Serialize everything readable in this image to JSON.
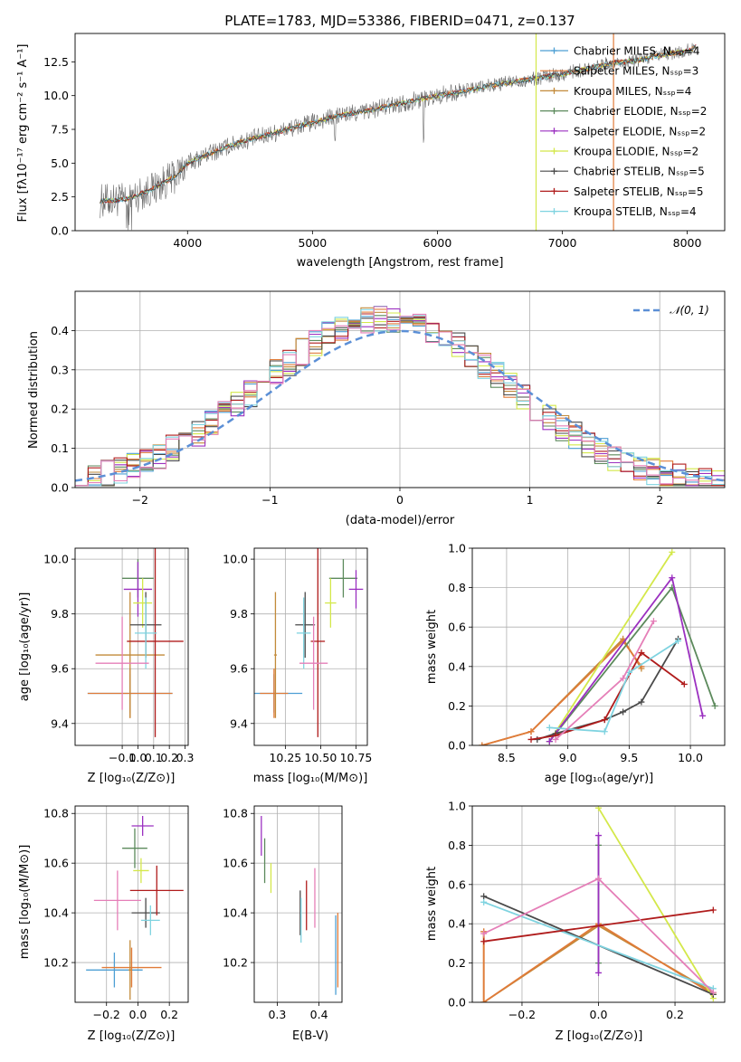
{
  "colors": {
    "chabrier_miles": "#4d9fd4",
    "salpeter_miles": "#e07b39",
    "kroupa_miles": "#c28a3a",
    "chabrier_elodie": "#5c8a5c",
    "salpeter_elodie": "#9b30c0",
    "kroupa_elodie": "#d4e84a",
    "chabrier_stelib": "#4a4a4a",
    "salpeter_stelib": "#b01c1c",
    "kroupa_stelib": "#7fd3e0",
    "extra_pink": "#e57fb8",
    "gaussian": "#5b8fd6",
    "spectrum_gray": "#6e6e6e"
  },
  "chart_data": [
    {
      "id": "spectrum",
      "type": "line",
      "title": "PLATE=1783, MJD=53386, FIBERID=0471, z=0.137",
      "xlabel": "wavelength [Angstrom, rest frame]",
      "ylabel": "Flux [fλ10⁻¹⁷ erg cm⁻² s⁻¹ A⁻¹]",
      "xlim": [
        3100,
        8300
      ],
      "ylim": [
        0,
        14.6
      ],
      "xticks": [
        "4000",
        "5000",
        "6000",
        "7000",
        "8000"
      ],
      "yticks": [
        "0.0",
        "2.5",
        "5.0",
        "7.5",
        "10.0",
        "12.5"
      ],
      "legend_position": "top-right",
      "grid": false,
      "legend": [
        {
          "name": "Chabrier MILES, Nₛₛₚ=4",
          "color_key": "chabrier_miles",
          "marker": "+"
        },
        {
          "name": "Salpeter MILES, Nₛₛₚ=3",
          "color_key": "salpeter_miles",
          "marker": ""
        },
        {
          "name": "Kroupa MILES, Nₛₛₚ=4",
          "color_key": "kroupa_miles",
          "marker": "+"
        },
        {
          "name": "Chabrier ELODIE, Nₛₛₚ=2",
          "color_key": "chabrier_elodie",
          "marker": "+"
        },
        {
          "name": "Salpeter ELODIE, Nₛₛₚ=2",
          "color_key": "salpeter_elodie",
          "marker": "+"
        },
        {
          "name": "Kroupa ELODIE, Nₛₛₚ=2",
          "color_key": "kroupa_elodie",
          "marker": "+"
        },
        {
          "name": "Chabrier STELIB, Nₛₛₚ=5",
          "color_key": "chabrier_stelib",
          "marker": "+"
        },
        {
          "name": "Salpeter STELIB, Nₛₛₚ=5",
          "color_key": "salpeter_stelib",
          "marker": "+"
        },
        {
          "name": "Kroupa STELIB, Nₛₛₚ=4",
          "color_key": "kroupa_stelib",
          "marker": "+"
        }
      ],
      "spectrum_anchors": {
        "x": [
          3300,
          3500,
          3700,
          3900,
          4000,
          4200,
          4400,
          4600,
          4800,
          5000,
          5200,
          5400,
          5600,
          5800,
          6000,
          6200,
          6400,
          6600,
          6800,
          7000,
          7200,
          7400,
          7600,
          7800,
          8000,
          8070
        ],
        "y": [
          2.2,
          2.3,
          3.0,
          4.0,
          5.0,
          5.8,
          6.5,
          7.0,
          7.5,
          8.0,
          8.5,
          8.8,
          9.2,
          9.6,
          10.0,
          10.3,
          10.7,
          11.0,
          11.3,
          11.6,
          12.0,
          12.4,
          12.6,
          13.0,
          13.3,
          13.6
        ]
      },
      "vertical_spikes_x": [
        6790,
        7410
      ]
    },
    {
      "id": "residuals",
      "type": "histogram",
      "xlabel": "(data-model)/error",
      "ylabel": "Normed distribution",
      "xlim": [
        -2.5,
        2.5
      ],
      "ylim": [
        0,
        0.5
      ],
      "xticks": [
        "−2",
        "−1",
        "0",
        "1",
        "2"
      ],
      "yticks": [
        "0.0",
        "0.1",
        "0.2",
        "0.3",
        "0.4"
      ],
      "grid": true,
      "legend_position": "top-right",
      "gaussian_label": "𝒩(0, 1)",
      "bin_width": 0.1
    },
    {
      "id": "age_vs_Z",
      "type": "errorbar",
      "xlabel": "Z [log₁₀(Z/Z⊙)]",
      "ylabel": "age  [log₁₀(age/yr)]",
      "xlim": [
        -0.4,
        0.32
      ],
      "ylim": [
        9.32,
        10.04
      ],
      "xticks": [
        "−0.1",
        "0.0",
        "0.1",
        "0.2",
        "0.3"
      ],
      "yticks": [
        "9.4",
        "9.6",
        "9.8",
        "10.0"
      ],
      "grid": true,
      "points": [
        {
          "color_key": "chabrier_miles",
          "x": -0.05,
          "xerr": 0.27,
          "y": 9.51,
          "yerr": 0.07
        },
        {
          "color_key": "salpeter_miles",
          "x": -0.05,
          "xerr": 0.27,
          "y": 9.51,
          "yerr": 0.09
        },
        {
          "color_key": "kroupa_miles",
          "x": -0.05,
          "xerr": 0.22,
          "y": 9.65,
          "yerr": 0.23
        },
        {
          "color_key": "chabrier_elodie",
          "x": 0.0,
          "xerr": 0.1,
          "y": 9.93,
          "yerr": 0.07
        },
        {
          "color_key": "salpeter_elodie",
          "x": 0.0,
          "xerr": 0.09,
          "y": 9.89,
          "yerr": 0.1
        },
        {
          "color_key": "kroupa_elodie",
          "x": 0.03,
          "xerr": 0.06,
          "y": 9.84,
          "yerr": 0.09
        },
        {
          "color_key": "chabrier_stelib",
          "x": 0.05,
          "xerr": 0.1,
          "y": 9.76,
          "yerr": 0.12
        },
        {
          "color_key": "salpeter_stelib",
          "x": 0.11,
          "xerr": 0.18,
          "y": 9.7,
          "yerr": 0.35
        },
        {
          "color_key": "kroupa_stelib",
          "x": 0.05,
          "xerr": 0.07,
          "y": 9.73,
          "yerr": 0.13
        },
        {
          "color_key": "extra_pink",
          "x": -0.1,
          "xerr": 0.17,
          "y": 9.62,
          "yerr": 0.17
        }
      ]
    },
    {
      "id": "age_vs_mass",
      "type": "errorbar",
      "xlabel": "mass [log₁₀(M/M⊙)]",
      "ylabel": "",
      "xlim": [
        10.03,
        10.83
      ],
      "ylim": [
        9.32,
        10.04
      ],
      "xticks": [
        "10.25",
        "10.50",
        "10.75"
      ],
      "yticks": [
        "9.4",
        "9.6",
        "9.8",
        "10.0"
      ],
      "grid": true,
      "points": [
        {
          "color_key": "chabrier_miles",
          "x": 10.17,
          "xerr": 0.2,
          "y": 9.51,
          "yerr": 0.07
        },
        {
          "color_key": "salpeter_miles",
          "x": 10.17,
          "xerr": 0.1,
          "y": 9.51,
          "yerr": 0.09
        },
        {
          "color_key": "kroupa_miles",
          "x": 10.18,
          "xerr": 0.01,
          "y": 9.65,
          "yerr": 0.23
        },
        {
          "color_key": "chabrier_elodie",
          "x": 10.66,
          "xerr": 0.1,
          "y": 9.93,
          "yerr": 0.07
        },
        {
          "color_key": "salpeter_elodie",
          "x": 10.75,
          "xerr": 0.05,
          "y": 9.89,
          "yerr": 0.07
        },
        {
          "color_key": "kroupa_elodie",
          "x": 10.57,
          "xerr": 0.04,
          "y": 9.84,
          "yerr": 0.09
        },
        {
          "color_key": "chabrier_stelib",
          "x": 10.39,
          "xerr": 0.07,
          "y": 9.76,
          "yerr": 0.12
        },
        {
          "color_key": "salpeter_stelib",
          "x": 10.48,
          "xerr": 0.05,
          "y": 9.7,
          "yerr": 0.35
        },
        {
          "color_key": "kroupa_stelib",
          "x": 10.38,
          "xerr": 0.05,
          "y": 9.73,
          "yerr": 0.13
        },
        {
          "color_key": "extra_pink",
          "x": 10.45,
          "xerr": 0.1,
          "y": 9.62,
          "yerr": 0.17
        }
      ]
    },
    {
      "id": "massweight_vs_age",
      "type": "line",
      "xlabel": "age  [log₁₀(age/yr)]",
      "ylabel": "mass weight",
      "xlim": [
        8.22,
        10.28
      ],
      "ylim": [
        0,
        1.0
      ],
      "xticks": [
        "8.5",
        "9.0",
        "9.5",
        "10.0"
      ],
      "yticks": [
        "0.0",
        "0.2",
        "0.4",
        "0.6",
        "0.8",
        "1.0"
      ],
      "grid": true,
      "series": [
        {
          "color_key": "kroupa_miles",
          "x": [
            8.3,
            8.7,
            9.45,
            9.6
          ],
          "y": [
            0.0,
            0.07,
            0.54,
            0.39
          ]
        },
        {
          "color_key": "salpeter_miles",
          "x": [
            8.3,
            8.7,
            9.45,
            9.6
          ],
          "y": [
            0.0,
            0.07,
            0.53,
            0.4
          ]
        },
        {
          "color_key": "kroupa_elodie",
          "x": [
            8.85,
            9.85
          ],
          "y": [
            0.02,
            0.98
          ]
        },
        {
          "color_key": "chabrier_elodie",
          "x": [
            8.85,
            9.85,
            10.2
          ],
          "y": [
            0.02,
            0.8,
            0.2
          ]
        },
        {
          "color_key": "salpeter_elodie",
          "x": [
            8.85,
            9.85,
            10.1
          ],
          "y": [
            0.02,
            0.85,
            0.15
          ]
        },
        {
          "color_key": "chabrier_stelib",
          "x": [
            8.75,
            8.9,
            9.3,
            9.45,
            9.6,
            9.9
          ],
          "y": [
            0.03,
            0.06,
            0.13,
            0.17,
            0.22,
            0.54
          ]
        },
        {
          "color_key": "salpeter_stelib",
          "x": [
            8.7,
            8.9,
            9.3,
            9.6,
            9.95
          ],
          "y": [
            0.03,
            0.05,
            0.13,
            0.47,
            0.31
          ]
        },
        {
          "color_key": "kroupa_stelib",
          "x": [
            8.85,
            9.3,
            9.5,
            9.9
          ],
          "y": [
            0.09,
            0.07,
            0.37,
            0.53
          ]
        },
        {
          "color_key": "extra_pink",
          "x": [
            8.9,
            9.45,
            9.7
          ],
          "y": [
            0.03,
            0.34,
            0.63
          ]
        }
      ]
    },
    {
      "id": "mass_vs_Z",
      "type": "errorbar",
      "xlabel": "Z [log₁₀(Z/Z⊙)]",
      "ylabel": "mass [log₁₀(M/M⊙)]",
      "xlim": [
        -0.4,
        0.32
      ],
      "ylim": [
        10.04,
        10.83
      ],
      "xticks": [
        "−0.2",
        "0.0",
        "0.2"
      ],
      "yticks": [
        "10.2",
        "10.4",
        "10.6",
        "10.8"
      ],
      "grid": true,
      "points": [
        {
          "color_key": "chabrier_miles",
          "x": -0.15,
          "xerr": 0.18,
          "y": 10.17,
          "yerr": 0.07
        },
        {
          "color_key": "salpeter_miles",
          "x": -0.04,
          "xerr": 0.19,
          "y": 10.18,
          "yerr": 0.08
        },
        {
          "color_key": "kroupa_miles",
          "x": -0.05,
          "xerr": 0.01,
          "y": 10.17,
          "yerr": 0.12
        },
        {
          "color_key": "chabrier_elodie",
          "x": -0.02,
          "xerr": 0.08,
          "y": 10.66,
          "yerr": 0.08
        },
        {
          "color_key": "salpeter_elodie",
          "x": 0.03,
          "xerr": 0.07,
          "y": 10.75,
          "yerr": 0.04
        },
        {
          "color_key": "kroupa_elodie",
          "x": 0.02,
          "xerr": 0.05,
          "y": 10.57,
          "yerr": 0.05
        },
        {
          "color_key": "chabrier_stelib",
          "x": 0.05,
          "xerr": 0.09,
          "y": 10.4,
          "yerr": 0.06
        },
        {
          "color_key": "salpeter_stelib",
          "x": 0.12,
          "xerr": 0.17,
          "y": 10.49,
          "yerr": 0.1
        },
        {
          "color_key": "kroupa_stelib",
          "x": 0.08,
          "xerr": 0.06,
          "y": 10.37,
          "yerr": 0.06
        },
        {
          "color_key": "extra_pink",
          "x": -0.13,
          "xerr": 0.15,
          "y": 10.45,
          "yerr": 0.12
        }
      ]
    },
    {
      "id": "mass_vs_ebv",
      "type": "errorbar",
      "xlabel": "E(B-V)",
      "ylabel": "",
      "xlim": [
        0.245,
        0.455
      ],
      "ylim": [
        10.04,
        10.83
      ],
      "xticks": [
        "0.3",
        "0.4"
      ],
      "yticks": [
        "10.2",
        "10.4",
        "10.6",
        "10.8"
      ],
      "grid": true,
      "points": [
        {
          "color_key": "chabrier_miles",
          "x": 0.44,
          "xerr": 0,
          "y": 10.23,
          "yerr": 0.16
        },
        {
          "color_key": "salpeter_miles",
          "x": 0.445,
          "xerr": 0,
          "y": 10.25,
          "yerr": 0.15
        },
        {
          "color_key": "chabrier_elodie",
          "x": 0.27,
          "xerr": 0,
          "y": 10.61,
          "yerr": 0.09
        },
        {
          "color_key": "salpeter_elodie",
          "x": 0.262,
          "xerr": 0,
          "y": 10.71,
          "yerr": 0.08
        },
        {
          "color_key": "kroupa_elodie",
          "x": 0.285,
          "xerr": 0,
          "y": 10.54,
          "yerr": 0.06
        },
        {
          "color_key": "chabrier_stelib",
          "x": 0.355,
          "xerr": 0,
          "y": 10.4,
          "yerr": 0.09
        },
        {
          "color_key": "salpeter_stelib",
          "x": 0.37,
          "xerr": 0,
          "y": 10.43,
          "yerr": 0.1
        },
        {
          "color_key": "kroupa_stelib",
          "x": 0.357,
          "xerr": 0,
          "y": 10.37,
          "yerr": 0.09
        },
        {
          "color_key": "extra_pink",
          "x": 0.39,
          "xerr": 0,
          "y": 10.46,
          "yerr": 0.12
        }
      ]
    },
    {
      "id": "massweight_vs_Z",
      "type": "line",
      "xlabel": "Z [log₁₀(Z/Z⊙)]",
      "ylabel": "mass weight",
      "xlim": [
        -0.33,
        0.33
      ],
      "ylim": [
        0,
        1.0
      ],
      "xticks": [
        "−0.2",
        "0.0",
        "0.2"
      ],
      "yticks": [
        "0.0",
        "0.2",
        "0.4",
        "0.6",
        "0.8",
        "1.0"
      ],
      "grid": true,
      "series": [
        {
          "color_key": "kroupa_miles",
          "x": [
            -0.3,
            -0.3,
            0.0,
            0.3
          ],
          "y": [
            0.36,
            0.0,
            0.39,
            0.05
          ]
        },
        {
          "color_key": "salpeter_miles",
          "x": [
            -0.3,
            -0.3,
            0.0,
            0.3
          ],
          "y": [
            0.36,
            0.0,
            0.4,
            0.04
          ]
        },
        {
          "color_key": "kroupa_elodie",
          "x": [
            0.0,
            0.3
          ],
          "y": [
            0.99,
            0.02
          ]
        },
        {
          "color_key": "chabrier_elodie",
          "x": [
            0.0,
            0.0
          ],
          "y": [
            0.2,
            0.8
          ]
        },
        {
          "color_key": "salpeter_elodie",
          "x": [
            0.0,
            0.0
          ],
          "y": [
            0.15,
            0.85
          ]
        },
        {
          "color_key": "chabrier_stelib",
          "x": [
            -0.3,
            0.3
          ],
          "y": [
            0.54,
            0.04
          ]
        },
        {
          "color_key": "kroupa_stelib",
          "x": [
            -0.3,
            0.3
          ],
          "y": [
            0.51,
            0.07
          ]
        },
        {
          "color_key": "salpeter_stelib",
          "x": [
            -0.3,
            0.3
          ],
          "y": [
            0.31,
            0.47
          ]
        },
        {
          "color_key": "extra_pink",
          "x": [
            -0.3,
            0.0,
            0.3
          ],
          "y": [
            0.35,
            0.63,
            0.05
          ]
        }
      ]
    }
  ]
}
